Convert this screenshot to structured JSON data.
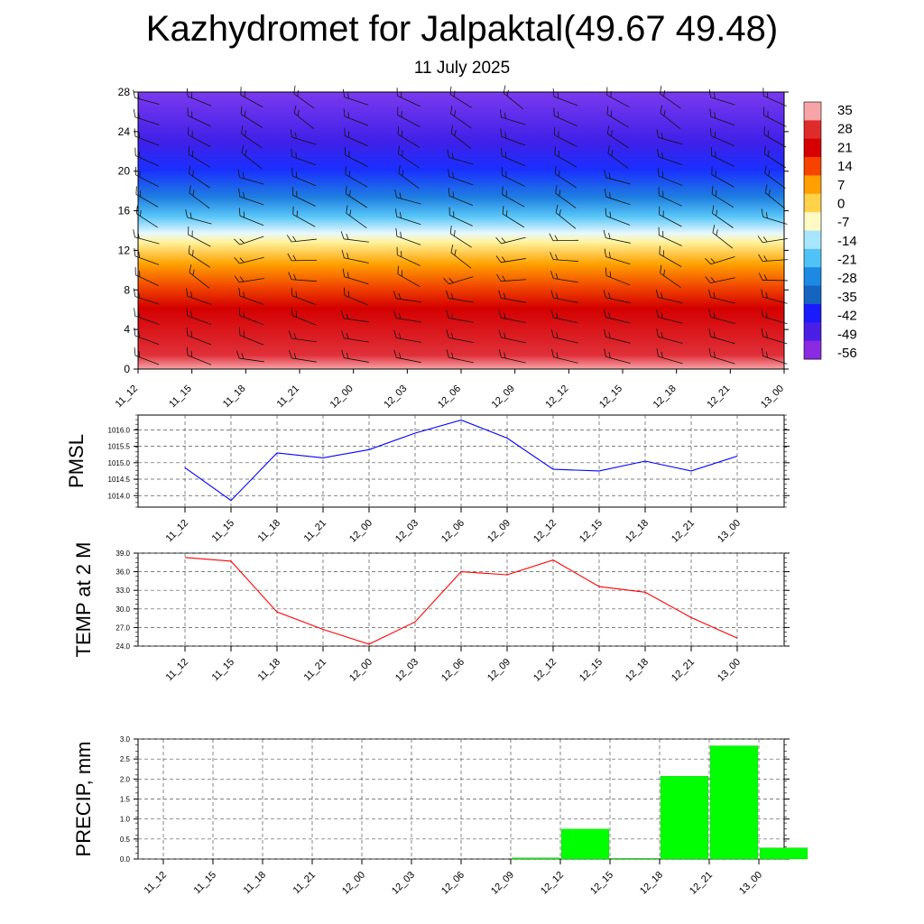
{
  "title": "Kazhydromet for Jalpaktal(49.67 49.48)",
  "subtitle": "11 July 2025",
  "time_labels": [
    "11_12",
    "11_15",
    "11_18",
    "11_21",
    "12_00",
    "12_03",
    "12_06",
    "12_09",
    "12_12",
    "12_15",
    "12_18",
    "12_21",
    "13_00"
  ],
  "chart_data": [
    {
      "type": "heatmap",
      "description_of_fill": "temperature cross-section by model level with wind barbs",
      "x": [
        "11_12",
        "11_15",
        "11_18",
        "11_21",
        "12_00",
        "12_03",
        "12_06",
        "12_09",
        "12_12",
        "12_15",
        "12_18",
        "12_21",
        "13_00"
      ],
      "y_ticks": [
        0,
        4,
        8,
        12,
        16,
        20,
        24,
        28
      ],
      "ylim": [
        0,
        28
      ],
      "colorbar_labels": [
        "35",
        "28",
        "21",
        "14",
        "7",
        "0",
        "-7",
        "-14",
        "-21",
        "-28",
        "-35",
        "-42",
        "-49",
        "-56"
      ],
      "colorbar_colors": [
        "#f7a4a8",
        "#e02b2b",
        "#d70000",
        "#f64400",
        "#ffa000",
        "#ffd24a",
        "#fff9c4",
        "#a8e6ff",
        "#4fc3f7",
        "#1e88e5",
        "#1565c0",
        "#1a1aff",
        "#4b1ee6",
        "#8a2be2"
      ]
    },
    {
      "type": "line",
      "ylabel": "PMSL",
      "x": [
        "11_12",
        "11_15",
        "11_18",
        "11_21",
        "12_00",
        "12_03",
        "12_06",
        "12_09",
        "12_12",
        "12_15",
        "12_18",
        "12_21",
        "13_00"
      ],
      "values": [
        1014.85,
        1013.85,
        1015.3,
        1015.15,
        1015.4,
        1015.9,
        1016.3,
        1015.75,
        1014.8,
        1014.75,
        1015.05,
        1014.75,
        1015.2
      ],
      "yticks": [
        "1014.0",
        "1014.5",
        "1015.0",
        "1015.5",
        "1016.0"
      ],
      "ylim": [
        1013.65,
        1016.45
      ],
      "color": "#0000ff"
    },
    {
      "type": "line",
      "ylabel": "TEMP at 2 M",
      "x": [
        "11_12",
        "11_15",
        "11_18",
        "11_21",
        "12_00",
        "12_03",
        "12_06",
        "12_09",
        "12_12",
        "12_15",
        "12_18",
        "12_21",
        "13_00"
      ],
      "values": [
        38.3,
        37.7,
        29.5,
        26.7,
        24.3,
        27.9,
        36.0,
        35.5,
        37.9,
        33.6,
        32.7,
        28.6,
        25.3
      ],
      "yticks": [
        "24.0",
        "27.0",
        "30.0",
        "33.0",
        "36.0",
        "39.0"
      ],
      "ylim": [
        24,
        39
      ],
      "color": "#ff0000"
    },
    {
      "type": "bar",
      "ylabel": "PRECIP, mm",
      "x": [
        "11_12",
        "11_15",
        "11_18",
        "11_21",
        "12_00",
        "12_03",
        "12_06",
        "12_09",
        "12_12",
        "12_15",
        "12_18",
        "12_21",
        "13_00"
      ],
      "values": [
        0,
        0,
        0,
        0,
        0,
        0,
        0,
        0.03,
        0.75,
        0.02,
        2.07,
        2.83,
        0.28
      ],
      "yticks": [
        "0.0",
        "0.5",
        "1.0",
        "1.5",
        "2.0",
        "2.5",
        "3.0"
      ],
      "ylim": [
        0,
        3
      ],
      "color": "#00ff00"
    }
  ]
}
